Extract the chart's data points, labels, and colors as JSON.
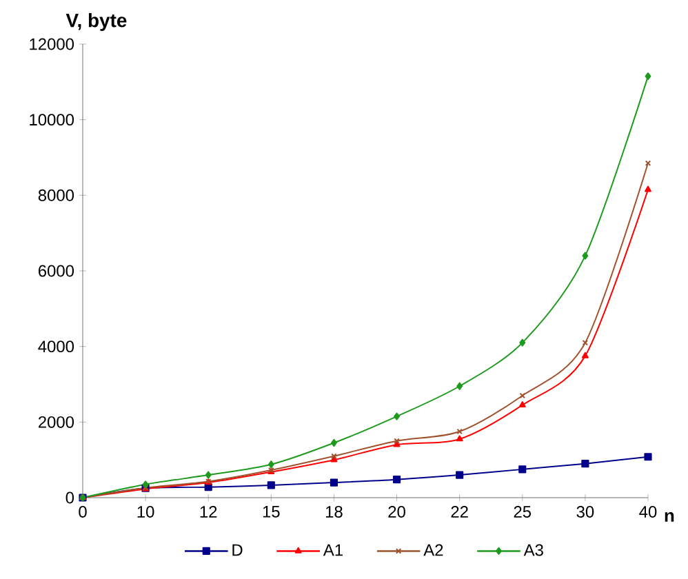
{
  "chart_data": {
    "type": "line",
    "xlabel": "n",
    "ylabel": "V, byte",
    "categories": [
      "0",
      "10",
      "12",
      "15",
      "18",
      "20",
      "22",
      "25",
      "30",
      "40"
    ],
    "series": [
      {
        "name": "D",
        "color": "#00008b",
        "marker": "square",
        "values": [
          0,
          250,
          280,
          330,
          400,
          480,
          600,
          750,
          900,
          1080
        ]
      },
      {
        "name": "A1",
        "color": "#ff0000",
        "marker": "triangle",
        "values": [
          0,
          230,
          400,
          680,
          1000,
          1400,
          1550,
          2450,
          3750,
          8150
        ]
      },
      {
        "name": "A2",
        "color": "#a0522d",
        "marker": "cross",
        "values": [
          0,
          260,
          430,
          730,
          1100,
          1500,
          1750,
          2700,
          4100,
          8850
        ]
      },
      {
        "name": "A3",
        "color": "#1e9a1e",
        "marker": "diamond",
        "values": [
          0,
          350,
          600,
          880,
          1450,
          2150,
          2950,
          4100,
          6400,
          11150
        ]
      }
    ],
    "ylim": [
      0,
      12000
    ],
    "yticks": [
      0,
      2000,
      4000,
      6000,
      8000,
      10000,
      12000
    ],
    "grid": false,
    "legend": "bottom",
    "line_style": "solid"
  }
}
